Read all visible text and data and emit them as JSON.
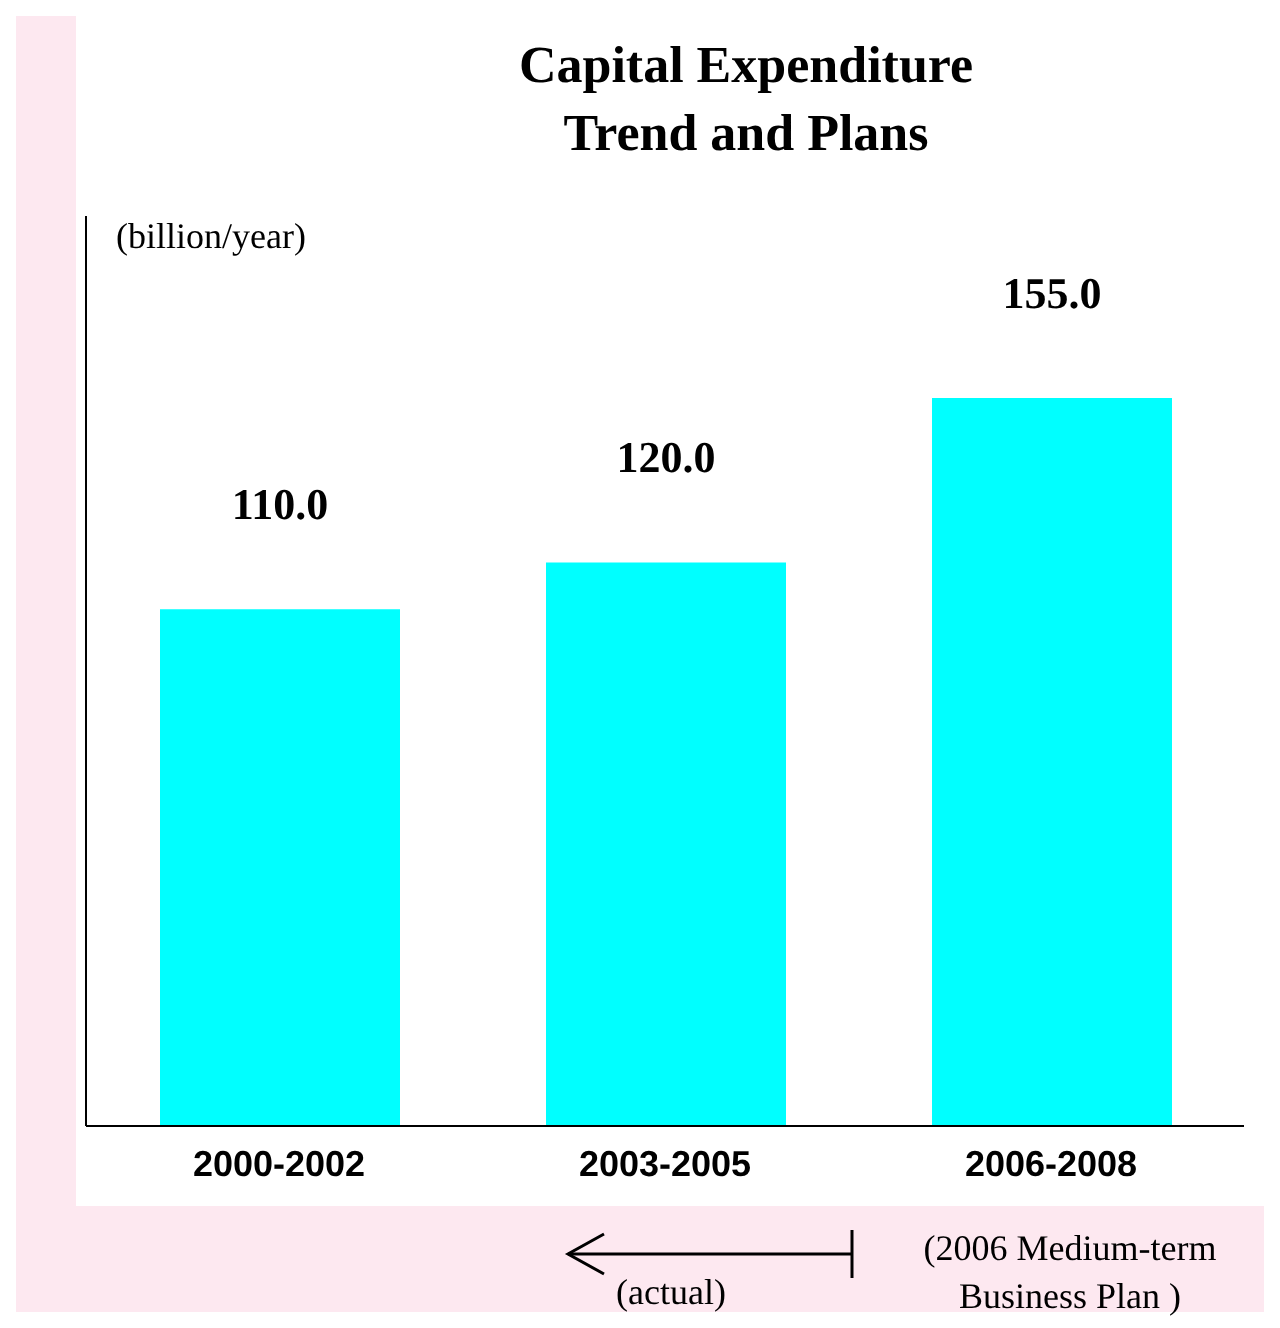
{
  "chart_data": {
    "type": "bar",
    "title": "Capital Expenditure Trend and Plans",
    "ylabel": "(billion/year)",
    "categories": [
      "2000-2002",
      "2003-2005",
      "2006-2008"
    ],
    "values": [
      110.0,
      120.0,
      155.0
    ],
    "value_labels": [
      "110.0",
      "120.0",
      "155.0"
    ],
    "color": "#00ffff",
    "annotations": [
      "(actual)",
      "(2006 Medium-term Business Plan )"
    ]
  }
}
